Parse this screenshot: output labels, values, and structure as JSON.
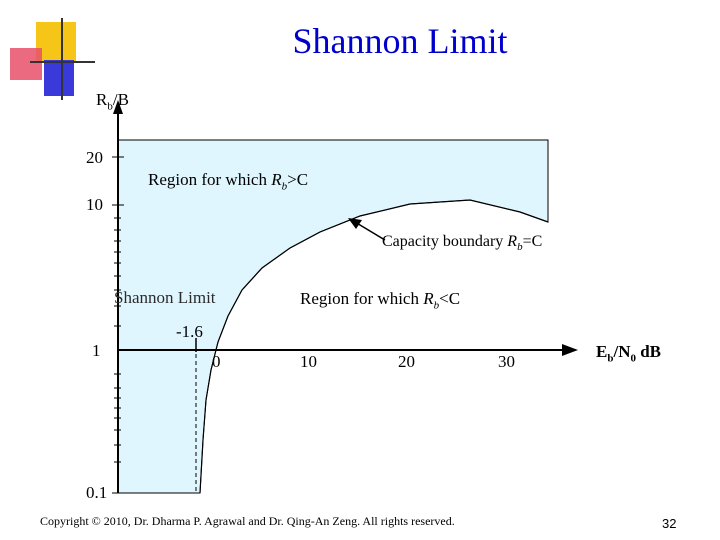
{
  "slide": {
    "title": "Shannon Limit",
    "y_axis_label_main": "R",
    "y_axis_label_sub": "b",
    "y_axis_label_tail": "/B",
    "x_axis_label_main": "E",
    "x_axis_label_sub1": "b",
    "x_axis_label_mid": "/N",
    "x_axis_label_sub2": "0",
    "x_axis_label_tail": " dB",
    "y_ticks": [
      "20",
      "10",
      "1",
      "0.1"
    ],
    "x_ticks": [
      "0",
      "10",
      "20",
      "30"
    ],
    "shannon_value": "-1.6",
    "shannon_limit_label": "Shannon Limit",
    "region_above_prefix": "Region for which ",
    "region_above_var": "R",
    "region_above_sub": "b",
    "region_above_tail": ">C",
    "region_below_prefix": "Region for which ",
    "region_below_var": "R",
    "region_below_sub": "b",
    "region_below_tail": "<C",
    "capacity_prefix": "Capacity boundary ",
    "capacity_var": "R",
    "capacity_sub": "b",
    "capacity_tail": "=C",
    "footer": "Copyright © 2010, Dr. Dharma P. Agrawal and Dr. Qing-An Zeng. All rights reserved.",
    "page_number": "32"
  },
  "colors": {
    "title": "#0000cc",
    "region_fill": "#e0f6ff",
    "axis": "#000000",
    "logo_yellow": "#f5c518",
    "logo_red": "#e8506a",
    "logo_blue": "#3a3adb"
  }
}
